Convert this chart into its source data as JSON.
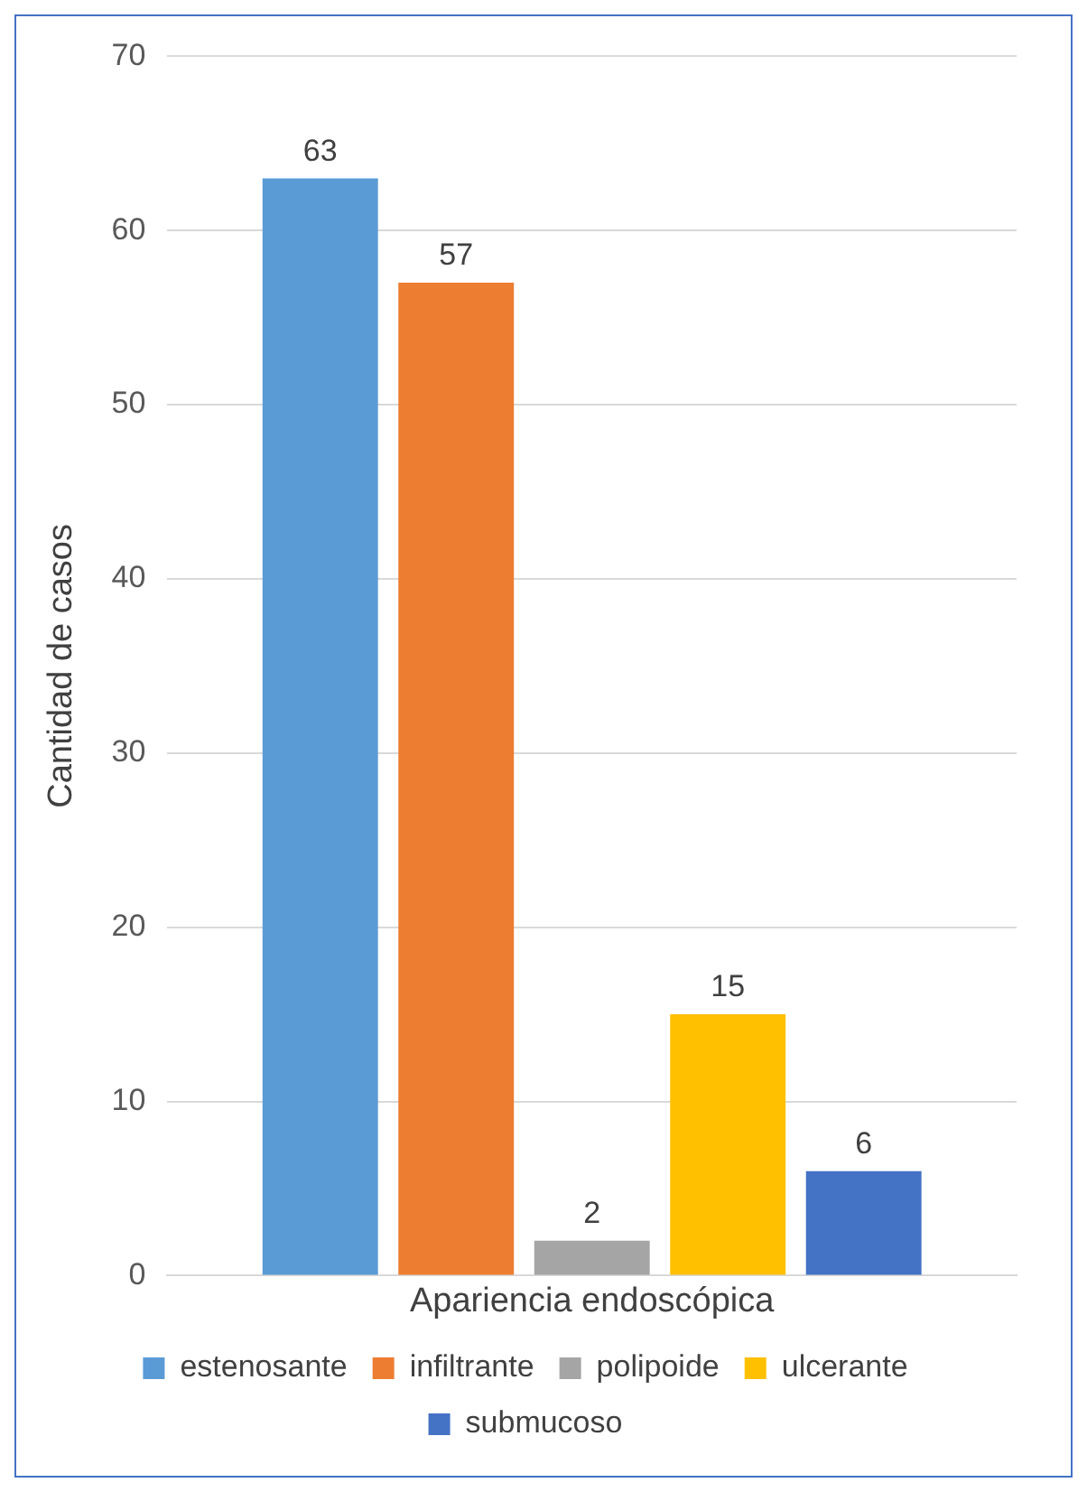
{
  "chart_data": {
    "type": "bar",
    "ylabel": "Cantidad de casos",
    "categories": [
      "Apariencia endoscópica"
    ],
    "series": [
      {
        "name": "estenosante",
        "color": "#5b9bd5",
        "values": [
          63
        ]
      },
      {
        "name": "infiltrante",
        "color": "#ed7d31",
        "values": [
          57
        ]
      },
      {
        "name": "polipoide",
        "color": "#a5a5a5",
        "values": [
          2
        ]
      },
      {
        "name": "ulcerante",
        "color": "#ffc000",
        "values": [
          15
        ]
      },
      {
        "name": "submucoso",
        "color": "#4472c4",
        "values": [
          6
        ]
      }
    ],
    "ylim": [
      0,
      70
    ],
    "yticks": [
      0,
      10,
      20,
      30,
      40,
      50,
      60,
      70
    ],
    "grid": "y",
    "legend": "bottom",
    "data_labels": true
  }
}
